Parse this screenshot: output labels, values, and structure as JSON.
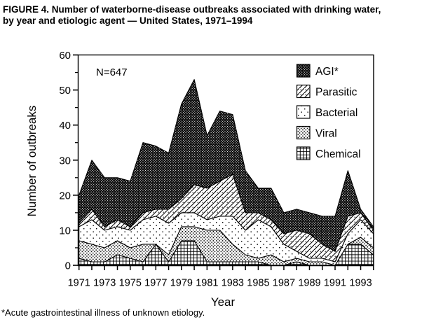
{
  "figure": {
    "title_line1": "FIGURE 4. Number of waterborne-disease outbreaks associated with drinking water,",
    "title_line2": "by year and etiologic agent — United States, 1971–1994",
    "footnote": "*Acute gastrointestinal illness of unknown etiology."
  },
  "annotation": "N=647",
  "colors": {
    "ink": "#000000",
    "background": "#ffffff"
  },
  "chart_data": {
    "type": "area",
    "stacked": true,
    "title": "Number of waterborne-disease outbreaks associated with drinking water, by year and etiologic agent — United States, 1971–1994",
    "total_n": 647,
    "xlabel": "Year",
    "ylabel": "Number of outbreaks",
    "ylim": [
      0,
      60
    ],
    "y_major_ticks": [
      0,
      10,
      20,
      30,
      40,
      50,
      60
    ],
    "y_minor_ticks": [
      5,
      15,
      25,
      35,
      45,
      55
    ],
    "x": [
      1971,
      1972,
      1973,
      1974,
      1975,
      1976,
      1977,
      1978,
      1979,
      1980,
      1981,
      1982,
      1983,
      1984,
      1985,
      1986,
      1987,
      1988,
      1989,
      1990,
      1991,
      1992,
      1993,
      1994
    ],
    "x_labeled_ticks": [
      1971,
      1973,
      1975,
      1977,
      1979,
      1981,
      1983,
      1985,
      1987,
      1989,
      1991,
      1993
    ],
    "grid": false,
    "legend_position": "inside-top-right",
    "legend_order_top_to_bottom": [
      "AGI*",
      "Parasitic",
      "Bacterial",
      "Viral",
      "Chemical"
    ],
    "series": [
      {
        "name": "Chemical",
        "pattern": "grid-hatch",
        "values": [
          2,
          1,
          1,
          3,
          2,
          1,
          6,
          1,
          7,
          7,
          1,
          1,
          1,
          1,
          1,
          0,
          0,
          1,
          0,
          0,
          0,
          6,
          6,
          3
        ]
      },
      {
        "name": "Viral",
        "pattern": "dense-stipple",
        "values": [
          5,
          5,
          4,
          4,
          3,
          5,
          0,
          2,
          4,
          4,
          9,
          9,
          5,
          2,
          1,
          3,
          1,
          1,
          1,
          1,
          0,
          0,
          2,
          2
        ]
      },
      {
        "name": "Bacterial",
        "pattern": "sparse-dots",
        "values": [
          4,
          7,
          5,
          4,
          5,
          7,
          8,
          9,
          4,
          4,
          3,
          4,
          8,
          7,
          11,
          8,
          5,
          2,
          1,
          1,
          1,
          3,
          5,
          4
        ]
      },
      {
        "name": "Parasitic",
        "pattern": "diagonal-hatch",
        "values": [
          1,
          3,
          1,
          2,
          1,
          2,
          2,
          4,
          4,
          8,
          9,
          10,
          12,
          5,
          2,
          2,
          3,
          6,
          7,
          4,
          3,
          5,
          2,
          1
        ]
      },
      {
        "name": "AGI*",
        "pattern": "solid-black-pinprick",
        "values": [
          8,
          14,
          14,
          12,
          13,
          20,
          18,
          16,
          27,
          30,
          15,
          20,
          17,
          12,
          7,
          9,
          6,
          6,
          6,
          8,
          10,
          13,
          1,
          1
        ]
      }
    ],
    "yearly_totals": [
      20,
      30,
      25,
      25,
      24,
      35,
      34,
      32,
      46,
      53,
      37,
      44,
      43,
      27,
      22,
      22,
      15,
      16,
      15,
      14,
      14,
      27,
      16,
      11
    ]
  }
}
